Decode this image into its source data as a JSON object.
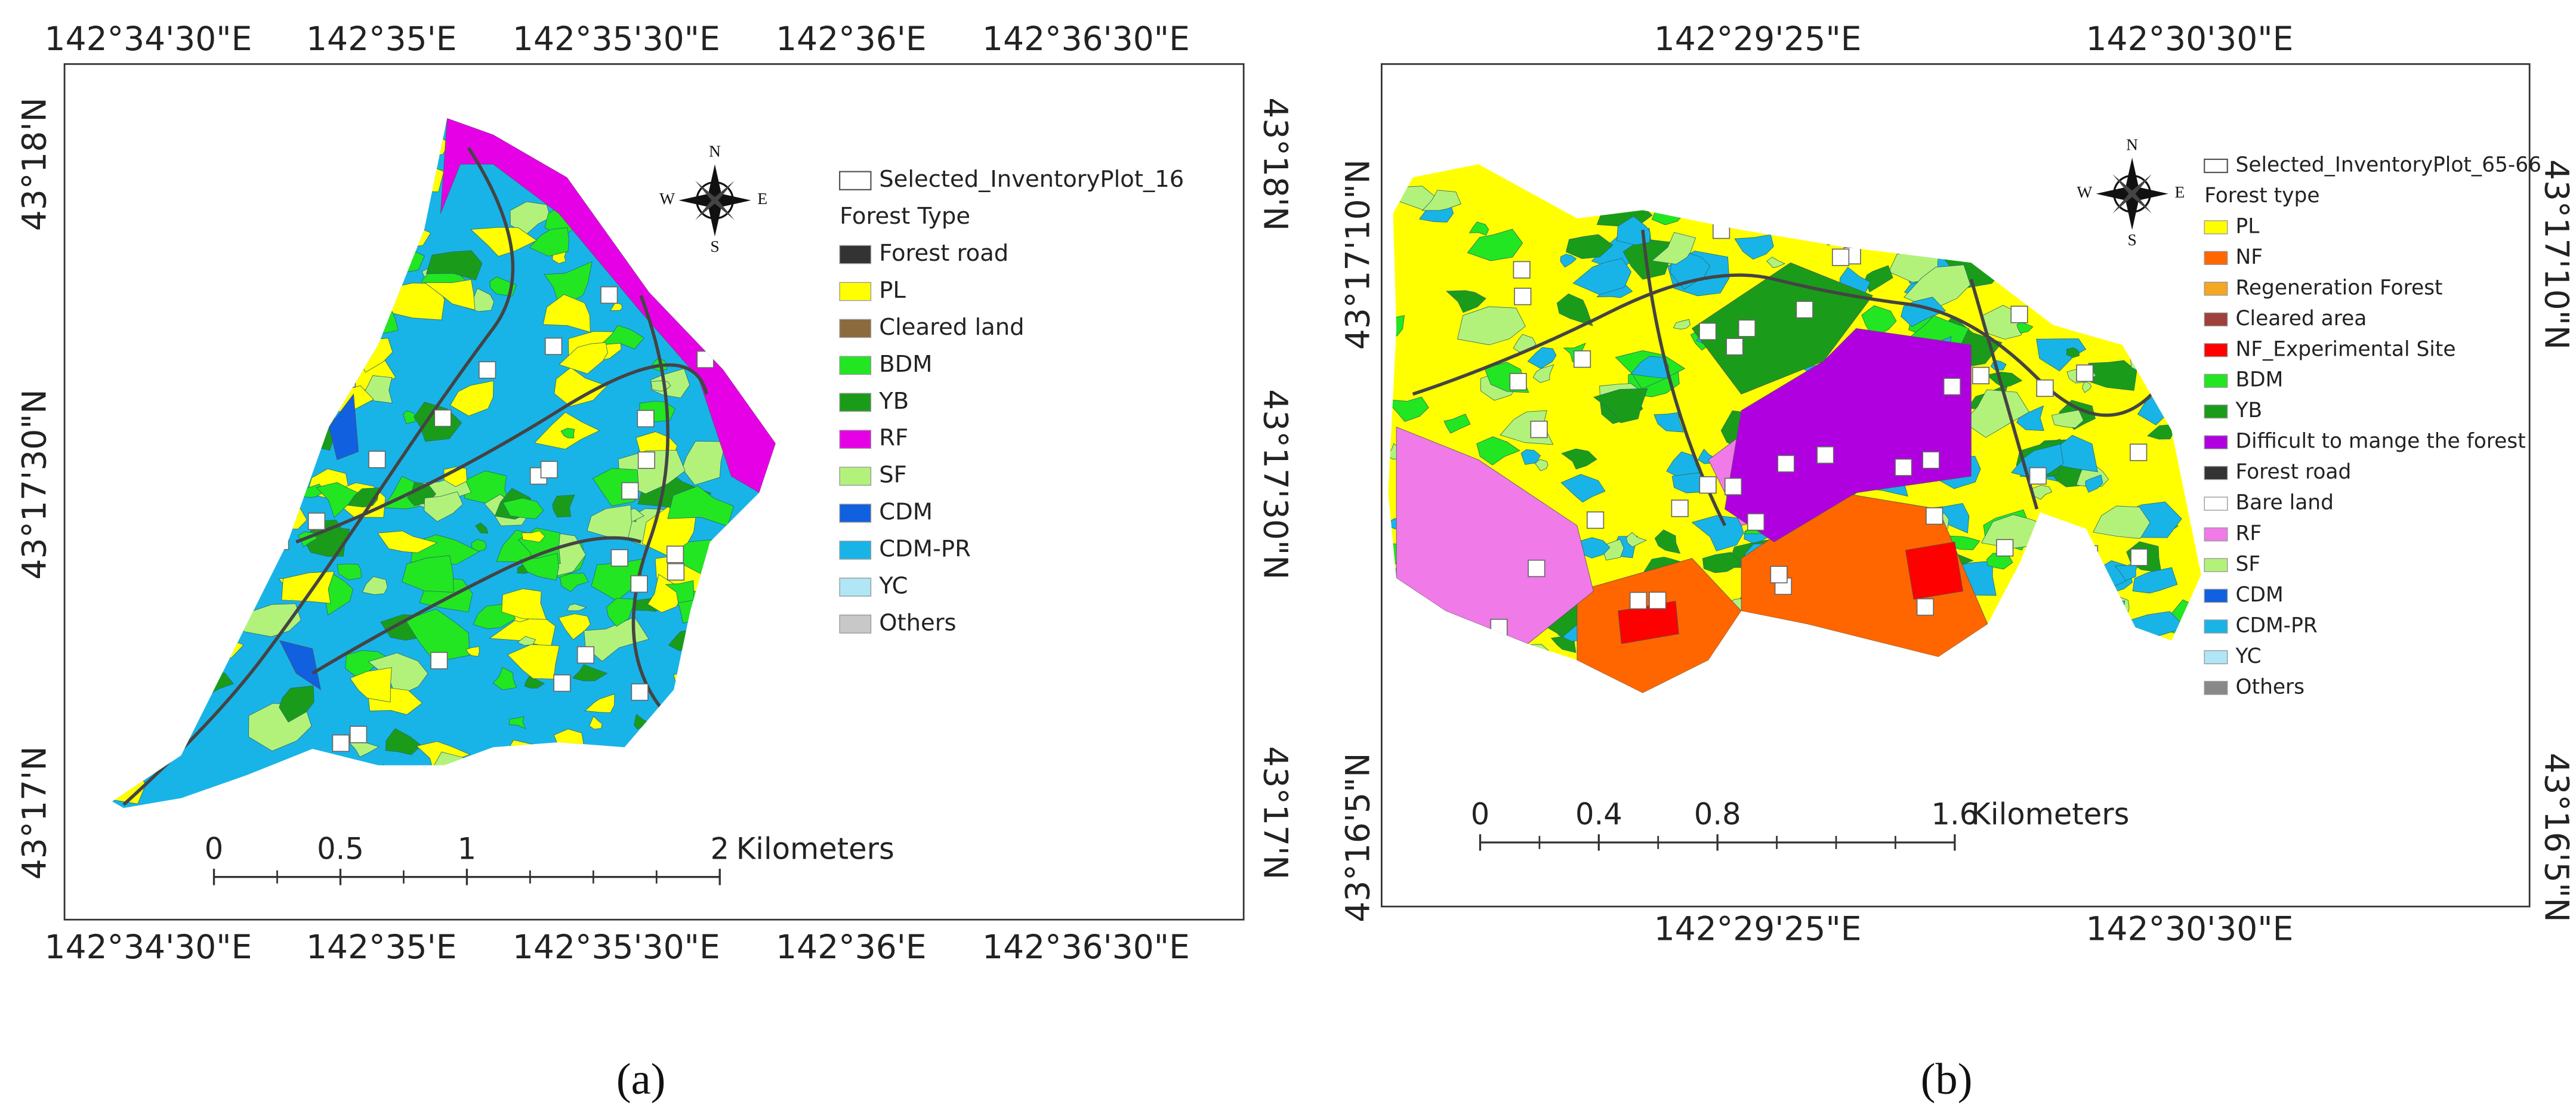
{
  "panels": [
    {
      "caption": "(a)",
      "top_labels": [
        "142°34'30\"E",
        "142°35'E",
        "142°35'30\"E",
        "142°36'E",
        "142°36'30\"E"
      ],
      "bottom_labels": [
        "142°34'30\"E",
        "142°35'E",
        "142°35'30\"E",
        "142°36'E",
        "142°36'30\"E"
      ],
      "left_labels": [
        "43°18'N",
        "43°17'30\"N",
        "43°17'N"
      ],
      "right_labels": [
        "43°18'N",
        "43°17'30\"N",
        "43°17'N"
      ],
      "compass": {
        "n": "N",
        "e": "E",
        "s": "S",
        "w": "W"
      },
      "legend": {
        "plot_label": "Selected_InventoryPlot_16",
        "heading": "Forest Type",
        "items": [
          {
            "label": "Forest road",
            "color": "#333333"
          },
          {
            "label": "PL",
            "color": "#ffff00"
          },
          {
            "label": "Cleared land",
            "color": "#8b6a3e"
          },
          {
            "label": "BDM",
            "color": "#22e622"
          },
          {
            "label": "YB",
            "color": "#1a9c1a"
          },
          {
            "label": "RF",
            "color": "#e600e6"
          },
          {
            "label": "SF",
            "color": "#b3f27a"
          },
          {
            "label": "CDM",
            "color": "#1060e0"
          },
          {
            "label": "CDM-PR",
            "color": "#18b4e8"
          },
          {
            "label": "YC",
            "color": "#b0e6f5"
          },
          {
            "label": "Others",
            "color": "#c8c8c8"
          }
        ]
      },
      "scale": {
        "ticks": [
          0,
          0.5,
          1,
          2
        ],
        "unit": "Kilometers"
      }
    },
    {
      "caption": "(b)",
      "top_labels": [
        "142°29'25\"E",
        "142°30'30\"E"
      ],
      "bottom_labels": [
        "142°29'25\"E",
        "142°30'30\"E"
      ],
      "left_labels": [
        "43°17'10\"N",
        "43°16'5\"N"
      ],
      "right_labels": [
        "43°17'10\"N",
        "43°16'5\"N"
      ],
      "compass": {
        "n": "N",
        "e": "E",
        "s": "S",
        "w": "W"
      },
      "legend": {
        "plot_label": "Selected_InventoryPlot_65-66",
        "heading": "Forest type",
        "items": [
          {
            "label": "PL",
            "color": "#ffff00"
          },
          {
            "label": "NF",
            "color": "#ff6600"
          },
          {
            "label": "Regeneration Forest",
            "color": "#f5a623"
          },
          {
            "label": "Cleared area",
            "color": "#a0403a"
          },
          {
            "label": "NF_Experimental Site",
            "color": "#ff0000"
          },
          {
            "label": "BDM",
            "color": "#22e622"
          },
          {
            "label": "YB",
            "color": "#1a9c1a"
          },
          {
            "label": "Difficult to mange the forest",
            "color": "#b000e0"
          },
          {
            "label": "Forest road",
            "color": "#333333"
          },
          {
            "label": "Bare land",
            "color": "#ffffff"
          },
          {
            "label": "RF",
            "color": "#f07ae8"
          },
          {
            "label": "SF",
            "color": "#b3f27a"
          },
          {
            "label": "CDM",
            "color": "#1060e0"
          },
          {
            "label": "CDM-PR",
            "color": "#18b4e8"
          },
          {
            "label": "YC",
            "color": "#b0e6f5"
          },
          {
            "label": "Others",
            "color": "#888888"
          }
        ]
      },
      "scale": {
        "ticks": [
          0,
          0.4,
          0.8,
          1.6
        ],
        "unit": "Kilometers"
      }
    }
  ]
}
